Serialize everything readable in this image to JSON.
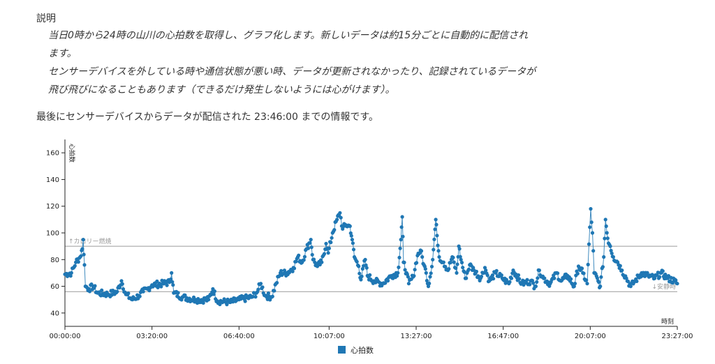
{
  "description": {
    "title": "説明",
    "line1": "当日0時から24時の山川の心拍数を取得し、グラフ化します。新しいデータは約15分ごとに自動的に配信されます。",
    "line2": "センサーデバイスを外している時や通信状態が悪い時、データが更新されなかったり、記録されているデータが飛び飛びになることもあります（できるだけ発生しないようには心がけます）。"
  },
  "last_update": {
    "prefix": "最後にセンサーデバイスからデータが配信された",
    "time": "23:46:00",
    "suffix": "までの情報です。"
  },
  "chart_data": {
    "type": "scatter",
    "xlabel": "時刻",
    "ylabel": "心拍数",
    "ylim": [
      30,
      170
    ],
    "y_ticks": [
      40,
      60,
      80,
      100,
      120,
      140,
      160
    ],
    "x_ticks": [
      "00:00:00",
      "03:20:00",
      "06:40:00",
      "10:07:00",
      "13:27:00",
      "16:47:00",
      "20:07:00",
      "23:27:00"
    ],
    "x_range": [
      "00:00:00",
      "23:27:00"
    ],
    "grid": false,
    "reference_lines": [
      {
        "label": "↑カロリー燃焼",
        "y": 90
      },
      {
        "label": "↓安静時",
        "y": 56
      }
    ],
    "legend": {
      "label": "心拍数",
      "position": "bottom"
    },
    "series": [
      {
        "name": "心拍数",
        "color": "#1f77b4",
        "anchors": [
          [
            "00:00:00",
            69
          ],
          [
            "00:15:00",
            70
          ],
          [
            "00:25:00",
            78
          ],
          [
            "00:35:00",
            82
          ],
          [
            "00:40:00",
            88
          ],
          [
            "00:42:00",
            95
          ],
          [
            "00:45:00",
            76
          ],
          [
            "00:47:00",
            60
          ],
          [
            "00:55:00",
            58
          ],
          [
            "01:05:00",
            60
          ],
          [
            "01:15:00",
            55
          ],
          [
            "01:40:00",
            54
          ],
          [
            "02:00:00",
            56
          ],
          [
            "02:10:00",
            64
          ],
          [
            "02:20:00",
            54
          ],
          [
            "02:35:00",
            50
          ],
          [
            "02:50:00",
            53
          ],
          [
            "03:00:00",
            56
          ],
          [
            "03:10:00",
            58
          ],
          [
            "03:20:00",
            61
          ],
          [
            "03:45:00",
            62
          ],
          [
            "04:00:00",
            63
          ],
          [
            "04:05:00",
            70
          ],
          [
            "04:10:00",
            55
          ],
          [
            "04:30:00",
            52
          ],
          [
            "05:00:00",
            50
          ],
          [
            "05:30:00",
            50
          ],
          [
            "05:40:00",
            58
          ],
          [
            "05:50:00",
            49
          ],
          [
            "06:20:00",
            48
          ],
          [
            "06:40:00",
            50
          ],
          [
            "07:10:00",
            52
          ],
          [
            "07:20:00",
            55
          ],
          [
            "07:30:00",
            62
          ],
          [
            "07:40:00",
            53
          ],
          [
            "07:55:00",
            52
          ],
          [
            "08:05:00",
            62
          ],
          [
            "08:15:00",
            70
          ],
          [
            "08:30:00",
            70
          ],
          [
            "08:45:00",
            74
          ],
          [
            "08:55:00",
            82
          ],
          [
            "09:05:00",
            78
          ],
          [
            "09:15:00",
            88
          ],
          [
            "09:25:00",
            95
          ],
          [
            "09:30:00",
            80
          ],
          [
            "09:40:00",
            75
          ],
          [
            "09:50:00",
            78
          ],
          [
            "10:00:00",
            92
          ],
          [
            "10:05:00",
            85
          ],
          [
            "10:15:00",
            100
          ],
          [
            "10:25:00",
            110
          ],
          [
            "10:32:00",
            115
          ],
          [
            "10:38:00",
            103
          ],
          [
            "10:45:00",
            106
          ],
          [
            "10:55:00",
            105
          ],
          [
            "11:00:00",
            95
          ],
          [
            "11:05:00",
            82
          ],
          [
            "11:15:00",
            75
          ],
          [
            "11:20:00",
            65
          ],
          [
            "11:30:00",
            80
          ],
          [
            "11:35:00",
            68
          ],
          [
            "11:50:00",
            64
          ],
          [
            "12:10:00",
            62
          ],
          [
            "12:30:00",
            68
          ],
          [
            "12:45:00",
            70
          ],
          [
            "12:52:00",
            95
          ],
          [
            "12:55:00",
            112
          ],
          [
            "12:58:00",
            78
          ],
          [
            "13:05:00",
            70
          ],
          [
            "13:10:00",
            62
          ],
          [
            "13:20:00",
            67
          ],
          [
            "13:30:00",
            83
          ],
          [
            "13:37:00",
            87
          ],
          [
            "13:45:00",
            76
          ],
          [
            "13:50:00",
            70
          ],
          [
            "13:55:00",
            60
          ],
          [
            "14:05:00",
            80
          ],
          [
            "14:12:00",
            110
          ],
          [
            "14:15:00",
            98
          ],
          [
            "14:20:00",
            82
          ],
          [
            "14:30:00",
            78
          ],
          [
            "14:40:00",
            72
          ],
          [
            "14:50:00",
            82
          ],
          [
            "15:00:00",
            70
          ],
          [
            "15:05:00",
            90
          ],
          [
            "15:10:00",
            80
          ],
          [
            "15:20:00",
            66
          ],
          [
            "15:30:00",
            76
          ],
          [
            "15:40:00",
            72
          ],
          [
            "15:55:00",
            66
          ],
          [
            "16:05:00",
            74
          ],
          [
            "16:15:00",
            64
          ],
          [
            "16:30:00",
            70
          ],
          [
            "16:45:00",
            66
          ],
          [
            "17:00:00",
            62
          ],
          [
            "17:10:00",
            72
          ],
          [
            "17:30:00",
            62
          ],
          [
            "17:50:00",
            64
          ],
          [
            "18:00:00",
            60
          ],
          [
            "18:10:00",
            72
          ],
          [
            "18:20:00",
            66
          ],
          [
            "18:35:00",
            62
          ],
          [
            "18:50:00",
            70
          ],
          [
            "19:00:00",
            64
          ],
          [
            "19:15:00",
            68
          ],
          [
            "19:30:00",
            60
          ],
          [
            "19:40:00",
            75
          ],
          [
            "19:50:00",
            70
          ],
          [
            "20:00:00",
            62
          ],
          [
            "20:08:00",
            118
          ],
          [
            "20:12:00",
            100
          ],
          [
            "20:16:00",
            70
          ],
          [
            "20:25:00",
            64
          ],
          [
            "20:30:00",
            60
          ],
          [
            "20:38:00",
            82
          ],
          [
            "20:42:00",
            110
          ],
          [
            "20:47:00",
            96
          ],
          [
            "20:53:00",
            90
          ],
          [
            "21:00:00",
            82
          ],
          [
            "21:10:00",
            78
          ],
          [
            "21:20:00",
            72
          ],
          [
            "21:30:00",
            66
          ],
          [
            "21:40:00",
            60
          ],
          [
            "21:50:00",
            64
          ],
          [
            "22:05:00",
            70
          ],
          [
            "22:20:00",
            68
          ],
          [
            "22:35:00",
            66
          ],
          [
            "22:50:00",
            70
          ],
          [
            "23:05:00",
            66
          ],
          [
            "23:20:00",
            64
          ],
          [
            "23:27:00",
            62
          ]
        ]
      }
    ]
  }
}
